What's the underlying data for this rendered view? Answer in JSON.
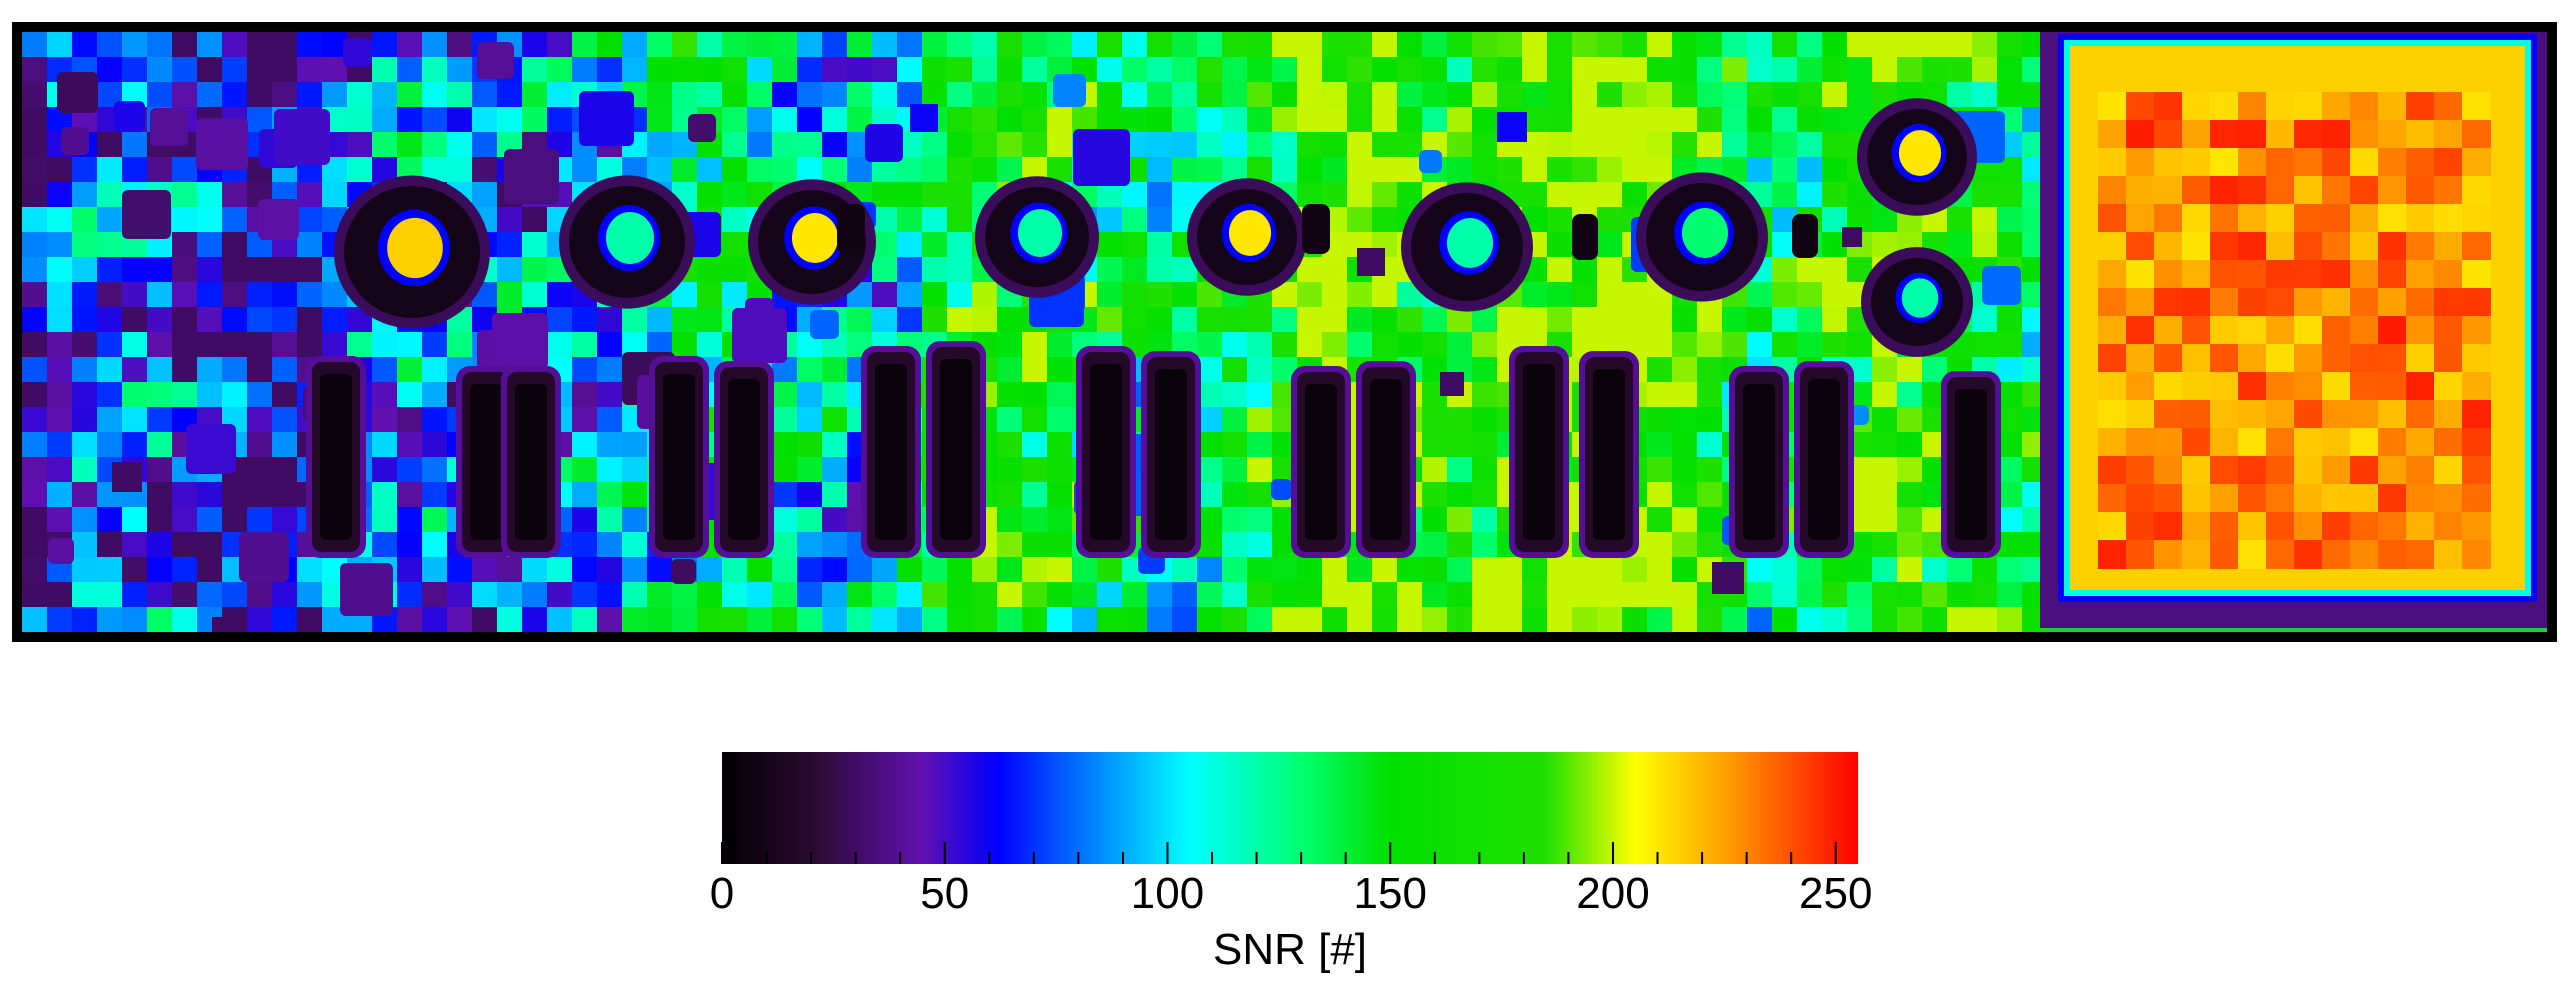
{
  "chart_data": {
    "type": "heatmap",
    "title": "",
    "colorbar": {
      "label": "SNR [#]",
      "min": 0,
      "max": 255,
      "major_ticks": [
        0,
        50,
        100,
        150,
        200,
        250
      ],
      "major_tick_labels": [
        "0",
        "50",
        "100",
        "150",
        "200",
        "250"
      ],
      "minor_tick_step": 10,
      "colormap_stops": [
        {
          "value": 0,
          "color": "#000000"
        },
        {
          "value": 20,
          "color": "#2a0a30"
        },
        {
          "value": 45,
          "color": "#6010b0"
        },
        {
          "value": 62,
          "color": "#0000ff"
        },
        {
          "value": 80,
          "color": "#0070ff"
        },
        {
          "value": 105,
          "color": "#00ffff"
        },
        {
          "value": 130,
          "color": "#00ff70"
        },
        {
          "value": 150,
          "color": "#00e000"
        },
        {
          "value": 185,
          "color": "#20e000"
        },
        {
          "value": 205,
          "color": "#ffff00"
        },
        {
          "value": 225,
          "color": "#ffa000"
        },
        {
          "value": 255,
          "color": "#ff0000"
        }
      ]
    },
    "regions": {
      "background_snr_range": [
        40,
        200
      ],
      "circular_features_rim_snr": 10,
      "circular_features_center_snr": [
        120,
        215
      ],
      "bar_features_snr": 5,
      "large_square_snr": 230,
      "large_square_border_snr": 215
    }
  }
}
